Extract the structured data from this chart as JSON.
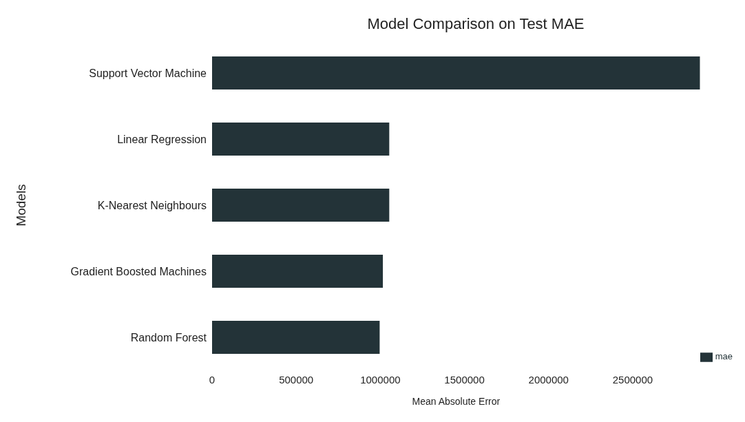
{
  "chart_data": {
    "type": "bar",
    "orientation": "horizontal",
    "title": "Model Comparison on Test MAE",
    "xlabel": "Mean Absolute Error",
    "ylabel": "Models",
    "categories": [
      "Support Vector Machine",
      "Linear Regression",
      "K-Nearest Neighbours",
      "Gradient Boosted Machines",
      "Random Forest"
    ],
    "series": [
      {
        "name": "mae",
        "color": "#233338",
        "values": [
          2900000,
          1053000,
          1053000,
          1015000,
          996000
        ]
      }
    ],
    "xlim": [
      0,
      2900000
    ],
    "xticks": [
      0,
      500000,
      1000000,
      1500000,
      2000000,
      2500000
    ],
    "grid": false,
    "legend": "bottom right"
  }
}
